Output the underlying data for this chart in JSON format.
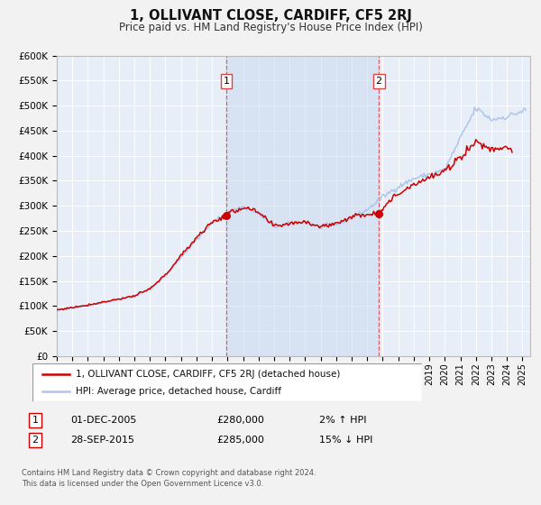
{
  "title": "1, OLLIVANT CLOSE, CARDIFF, CF5 2RJ",
  "subtitle": "Price paid vs. HM Land Registry's House Price Index (HPI)",
  "ylim": [
    0,
    600000
  ],
  "yticks": [
    0,
    50000,
    100000,
    150000,
    200000,
    250000,
    300000,
    350000,
    400000,
    450000,
    500000,
    550000,
    600000
  ],
  "ytick_labels": [
    "£0",
    "£50K",
    "£100K",
    "£150K",
    "£200K",
    "£250K",
    "£300K",
    "£350K",
    "£400K",
    "£450K",
    "£500K",
    "£550K",
    "£600K"
  ],
  "hpi_color": "#aec6e8",
  "price_color": "#cc0000",
  "marker_color": "#cc0000",
  "bg_color": "#e8eef7",
  "grid_color": "#ffffff",
  "fig_bg": "#f2f2f2",
  "transaction1_x": 2005.9167,
  "transaction1_price": 280000,
  "transaction2_x": 2015.75,
  "transaction2_price": 285000,
  "legend_line1": "1, OLLIVANT CLOSE, CARDIFF, CF5 2RJ (detached house)",
  "legend_line2": "HPI: Average price, detached house, Cardiff",
  "table_row1": [
    "1",
    "01-DEC-2005",
    "£280,000",
    "2% ↑ HPI"
  ],
  "table_row2": [
    "2",
    "28-SEP-2015",
    "£285,000",
    "15% ↓ HPI"
  ],
  "footnote1": "Contains HM Land Registry data © Crown copyright and database right 2024.",
  "footnote2": "This data is licensed under the Open Government Licence v3.0.",
  "xlim_start": 1995.0,
  "xlim_end": 2025.5,
  "span_color": "#c8d8f0",
  "dashed_color": "#dd4444"
}
